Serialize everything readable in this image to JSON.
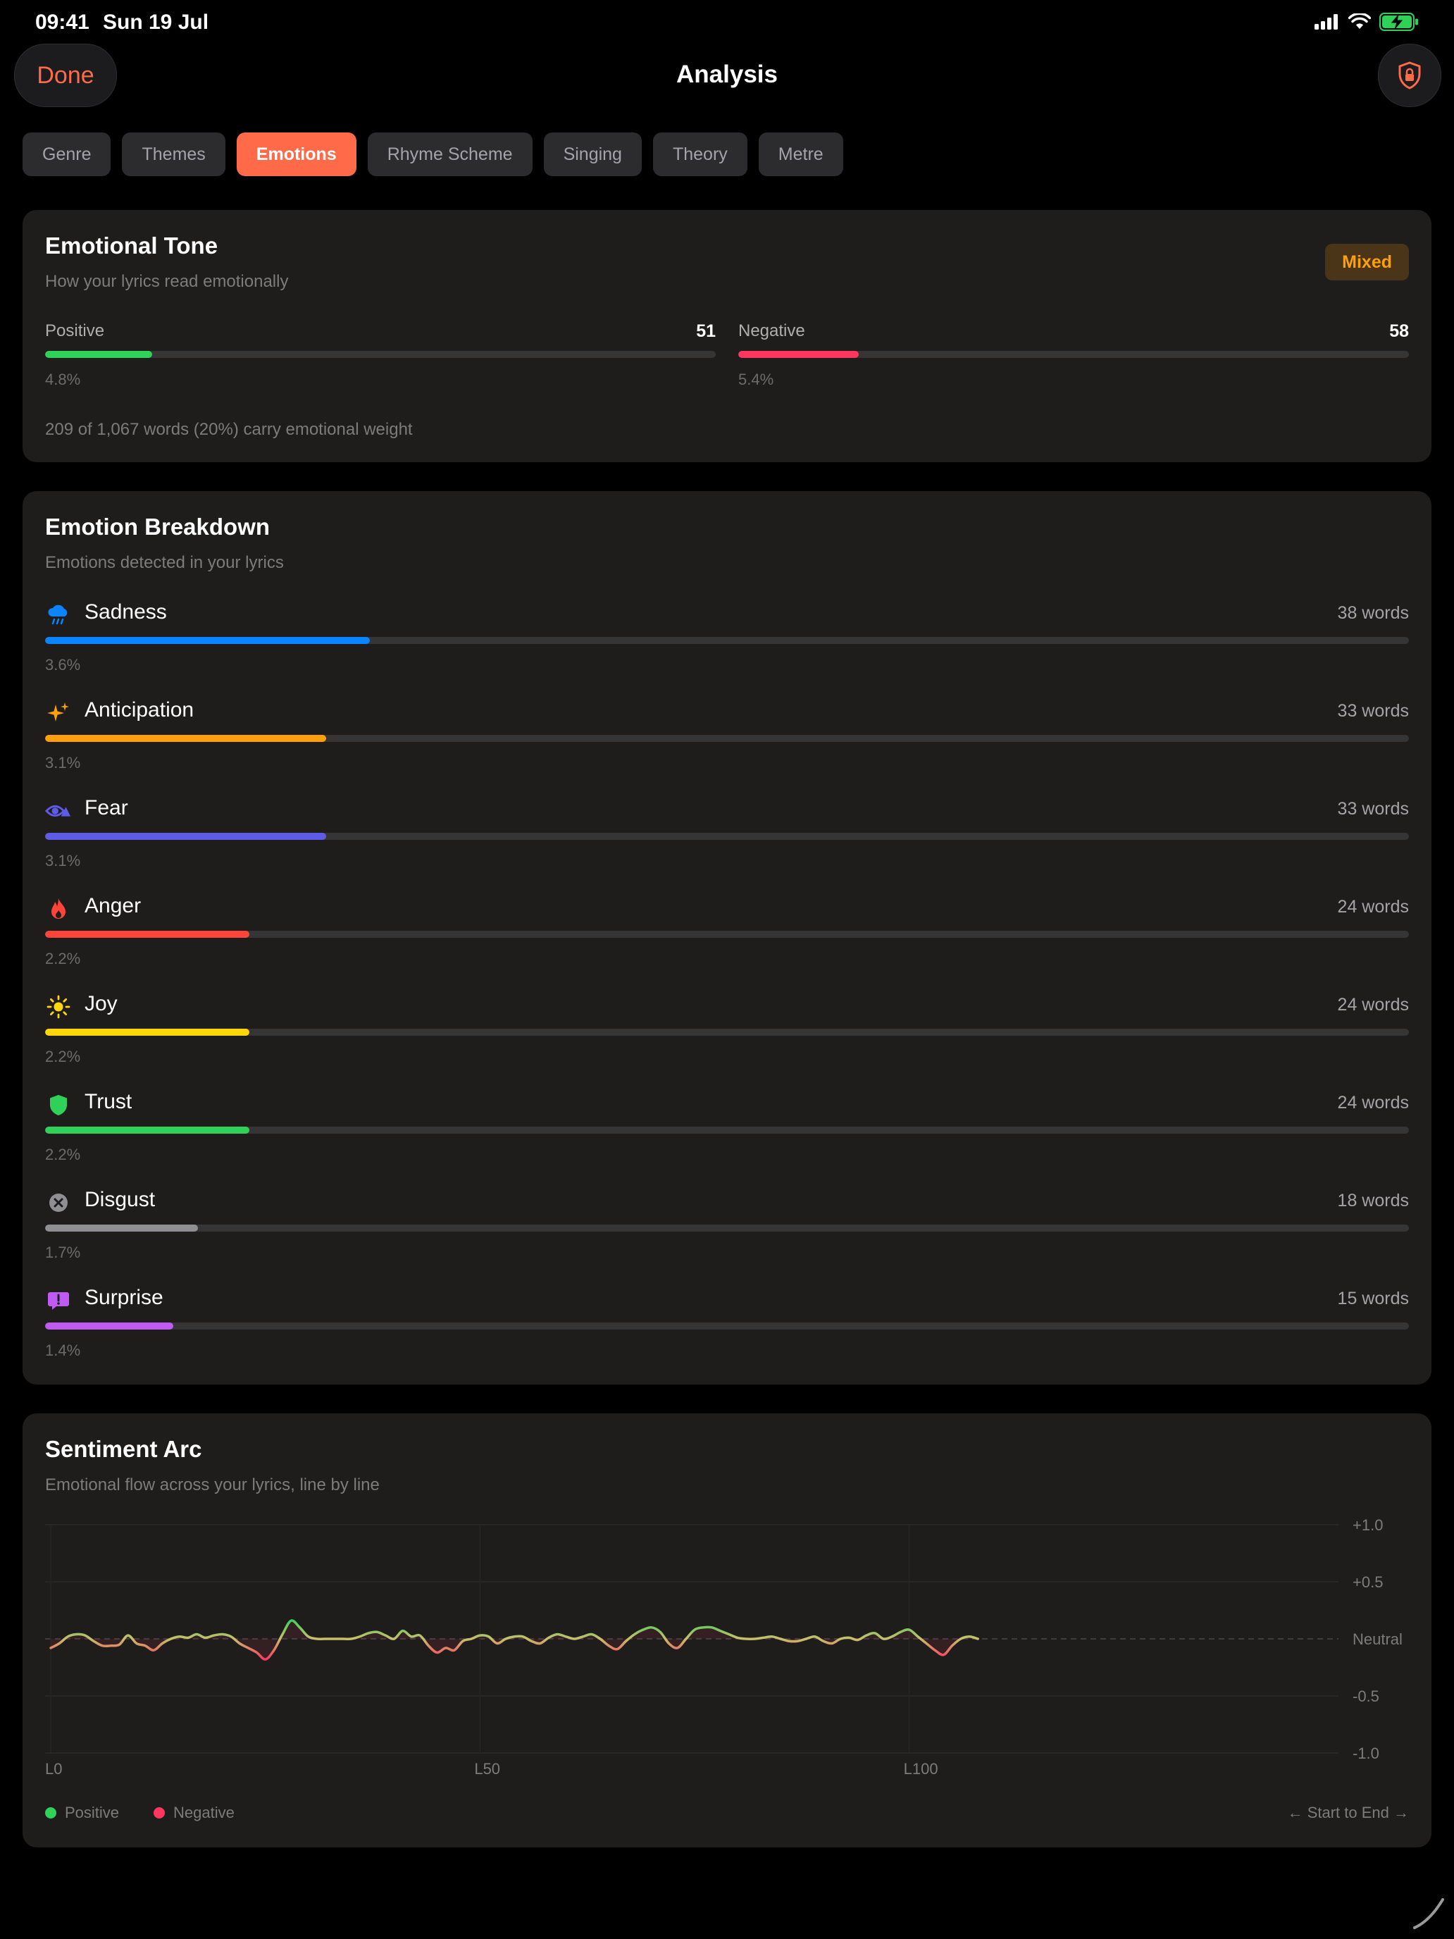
{
  "status_bar": {
    "time": "09:41",
    "date": "Sun 19 Jul"
  },
  "header": {
    "done_label": "Done",
    "title": "Analysis"
  },
  "tabs": [
    {
      "label": "Genre",
      "active": false
    },
    {
      "label": "Themes",
      "active": false
    },
    {
      "label": "Emotions",
      "active": true
    },
    {
      "label": "Rhyme Scheme",
      "active": false
    },
    {
      "label": "Singing",
      "active": false
    },
    {
      "label": "Theory",
      "active": false
    },
    {
      "label": "Metre",
      "active": false
    }
  ],
  "tone": {
    "title": "Emotional Tone",
    "subtitle": "How your lyrics read emotionally",
    "badge": "Mixed",
    "positive": {
      "label": "Positive",
      "count": "51",
      "percent": "4.8%",
      "fill_fraction": 0.16,
      "color": "#30d158"
    },
    "negative": {
      "label": "Negative",
      "count": "58",
      "percent": "5.4%",
      "fill_fraction": 0.18,
      "color": "#ff375f"
    },
    "summary": "209 of 1,067 words (20%) carry emotional weight"
  },
  "breakdown": {
    "title": "Emotion Breakdown",
    "subtitle": "Emotions detected in your lyrics",
    "items": [
      {
        "name": "Sadness",
        "words": "38 words",
        "percent": "3.6%",
        "fill_fraction": 0.238,
        "color": "#0a84ff",
        "icon": "cloud-rain-icon"
      },
      {
        "name": "Anticipation",
        "words": "33 words",
        "percent": "3.1%",
        "fill_fraction": 0.206,
        "color": "#ff9f0a",
        "icon": "sparkles-icon"
      },
      {
        "name": "Fear",
        "words": "33 words",
        "percent": "3.1%",
        "fill_fraction": 0.206,
        "color": "#5e5ce6",
        "icon": "eye-warning-icon"
      },
      {
        "name": "Anger",
        "words": "24 words",
        "percent": "2.2%",
        "fill_fraction": 0.15,
        "color": "#ff453a",
        "icon": "flame-icon"
      },
      {
        "name": "Joy",
        "words": "24 words",
        "percent": "2.2%",
        "fill_fraction": 0.15,
        "color": "#ffd60a",
        "icon": "sun-icon"
      },
      {
        "name": "Trust",
        "words": "24 words",
        "percent": "2.2%",
        "fill_fraction": 0.15,
        "color": "#30d158",
        "icon": "shield-icon"
      },
      {
        "name": "Disgust",
        "words": "18 words",
        "percent": "1.7%",
        "fill_fraction": 0.112,
        "color": "#8e8e93",
        "icon": "x-circle-icon"
      },
      {
        "name": "Surprise",
        "words": "15 words",
        "percent": "1.4%",
        "fill_fraction": 0.094,
        "color": "#bf5af2",
        "icon": "exclamation-bubble-icon"
      }
    ]
  },
  "arc": {
    "title": "Sentiment Arc",
    "subtitle": "Emotional flow across your lyrics, line by line",
    "start_end_label": "← Start to End →",
    "legend": [
      {
        "label": "Positive",
        "color": "#30d158"
      },
      {
        "label": "Negative",
        "color": "#ff375f"
      }
    ]
  },
  "chart_data": {
    "type": "line",
    "title": "Sentiment Arc",
    "xlabel": "",
    "ylabel": "",
    "x_tick_labels": [
      "L0",
      "L50",
      "L100"
    ],
    "x_ticks": [
      0,
      50,
      100
    ],
    "y_tick_labels": [
      "+1.0",
      "+0.5",
      "Neutral",
      "-0.5",
      "-1.0"
    ],
    "y_ticks": [
      1.0,
      0.5,
      0.0,
      -0.5,
      -1.0
    ],
    "xlim": [
      0,
      150
    ],
    "ylim": [
      -1.0,
      1.0
    ],
    "grid": true,
    "legend": "bottom-left",
    "series": [
      {
        "name": "Sentiment",
        "x": [
          0,
          1,
          2,
          3,
          4,
          5,
          6,
          7,
          8,
          9,
          10,
          11,
          12,
          13,
          14,
          15,
          16,
          17,
          18,
          19,
          20,
          21,
          22,
          23,
          24,
          25,
          26,
          27,
          28,
          29,
          30,
          31,
          32,
          33,
          34,
          35,
          36,
          37,
          38,
          39,
          40,
          41,
          42,
          43,
          44,
          45,
          46,
          47,
          48,
          49,
          50,
          51,
          52,
          53,
          54,
          55,
          56,
          57,
          58,
          59,
          60,
          61,
          62,
          63,
          64,
          65,
          66,
          67,
          68,
          69,
          70,
          71,
          72,
          73,
          74,
          75,
          76,
          77,
          78,
          79,
          80,
          81,
          82,
          83,
          84,
          85,
          86,
          87,
          88,
          89,
          90,
          91,
          92,
          93,
          94,
          95,
          96,
          97,
          98,
          99,
          100,
          101,
          102,
          103,
          104,
          105,
          106,
          107,
          108
        ],
        "values": [
          -0.08,
          -0.04,
          0.02,
          0.04,
          0.03,
          -0.02,
          -0.06,
          -0.06,
          -0.05,
          0.03,
          -0.04,
          -0.06,
          -0.1,
          -0.04,
          0.0,
          0.02,
          0.01,
          0.04,
          0.01,
          0.03,
          0.04,
          0.02,
          -0.04,
          -0.08,
          -0.12,
          -0.18,
          -0.1,
          0.04,
          0.16,
          0.1,
          0.02,
          0.0,
          0.0,
          0.0,
          0.0,
          0.0,
          0.02,
          0.05,
          0.06,
          0.03,
          0.0,
          0.07,
          0.02,
          0.03,
          -0.06,
          -0.12,
          -0.08,
          -0.1,
          -0.02,
          0.0,
          0.03,
          0.02,
          -0.04,
          0.0,
          0.02,
          0.02,
          -0.02,
          -0.04,
          0.01,
          0.04,
          0.02,
          0.0,
          0.02,
          0.04,
          0.0,
          -0.06,
          -0.09,
          -0.02,
          0.04,
          0.08,
          0.1,
          0.06,
          -0.04,
          -0.08,
          0.0,
          0.08,
          0.1,
          0.1,
          0.07,
          0.04,
          0.01,
          0.0,
          0.0,
          0.01,
          0.02,
          0.0,
          -0.02,
          -0.02,
          0.0,
          0.02,
          -0.02,
          -0.04,
          0.0,
          0.01,
          -0.01,
          0.03,
          0.05,
          0.0,
          0.02,
          0.06,
          0.08,
          0.02,
          -0.04,
          -0.1,
          -0.14,
          -0.06,
          0.0,
          0.02,
          0.0
        ]
      }
    ]
  }
}
